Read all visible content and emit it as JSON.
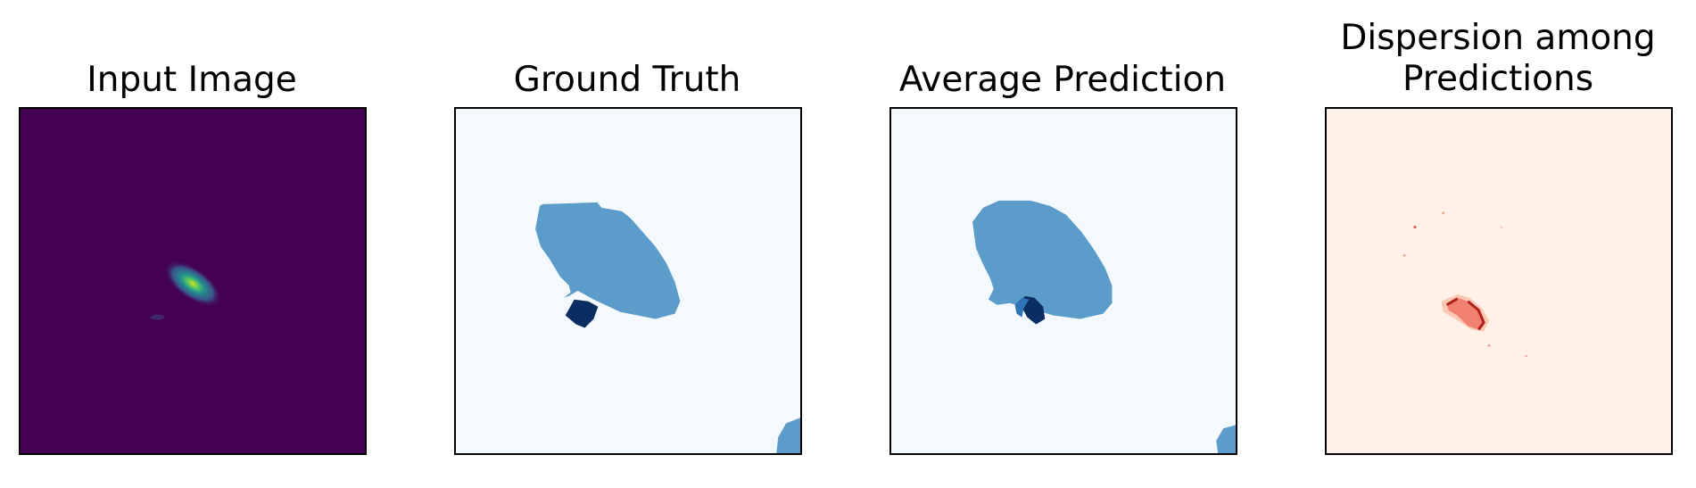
{
  "figure": {
    "panels": [
      {
        "title": "Input Image",
        "colormap": "viridis",
        "background": "#440154"
      },
      {
        "title": "Ground Truth",
        "colormap": "Blues",
        "background": "#f4f9fe"
      },
      {
        "title": "Average Prediction",
        "colormap": "Blues",
        "background": "#f4f9fe"
      },
      {
        "title_line1": "Dispersion among",
        "title_line2": "Predictions",
        "colormap": "Reds",
        "background": "#fff0e8"
      }
    ],
    "colors": {
      "viridis_dark": "#440154",
      "blues_light": "#f4f9fe",
      "blues_mid": "#5b9ccb",
      "blues_dark": "#0a2d62",
      "reds_light": "#fff0e8",
      "reds_mid": "#f08070",
      "reds_dark": "#b0201a"
    }
  }
}
